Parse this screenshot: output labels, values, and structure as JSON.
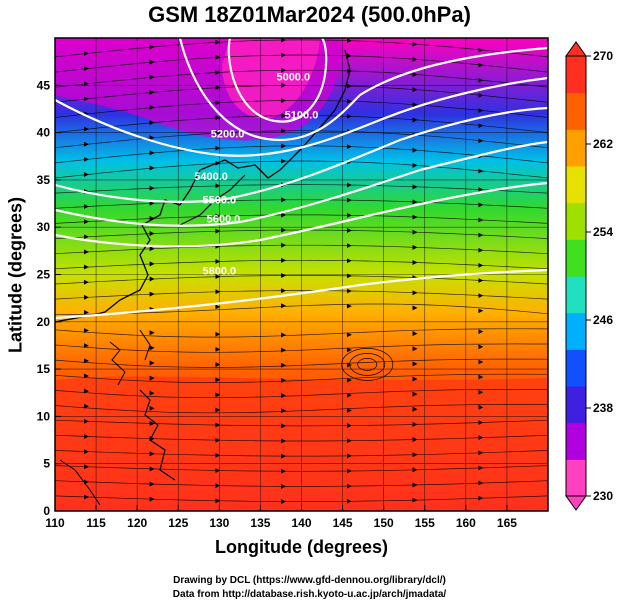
{
  "title": "GSM 18Z01Mar2024 (500.0hPa)",
  "xaxis": {
    "label": "Longitude (degrees)",
    "range": [
      110,
      170
    ],
    "ticks": [
      110,
      115,
      120,
      125,
      130,
      135,
      140,
      145,
      150,
      155,
      160,
      165
    ]
  },
  "yaxis": {
    "label": "Latitude  (degrees)",
    "range": [
      0,
      50
    ],
    "ticks": [
      0,
      5,
      10,
      15,
      20,
      25,
      30,
      35,
      40,
      45
    ]
  },
  "colorbar": {
    "range": [
      230,
      270
    ],
    "tick_values": [
      230,
      238,
      246,
      254,
      262,
      270
    ],
    "tick_labels": [
      "230",
      "238",
      "246",
      "254",
      "262",
      "270"
    ],
    "colors": [
      "#ff40c0",
      "#b000e0",
      "#4020e0",
      "#1050ff",
      "#00b0ff",
      "#20e0c0",
      "#40e020",
      "#a0e000",
      "#e8e000",
      "#ffa000",
      "#ff6000",
      "#ff3020"
    ]
  },
  "contours": [
    {
      "label": "5000.0",
      "label_pos": [
        139,
        45.5
      ]
    },
    {
      "label": "5100.0",
      "label_pos": [
        140,
        41.5
      ]
    },
    {
      "label": "5200.0",
      "label_pos": [
        131,
        39.5
      ]
    },
    {
      "label": "5400.0",
      "label_pos": [
        129,
        35
      ]
    },
    {
      "label": "5500.0",
      "label_pos": [
        130,
        32.5
      ]
    },
    {
      "label": "5600.0",
      "label_pos": [
        130.5,
        30.5
      ]
    },
    {
      "label": "5800.0",
      "label_pos": [
        130,
        25
      ]
    }
  ],
  "credits": {
    "line1": "Drawing by DCL (https://www.gfd-dennou.org/library/dcl/)",
    "line2": "Data from http://database.rish.kyoto-u.ac.jp/arch/jmadata/"
  }
}
